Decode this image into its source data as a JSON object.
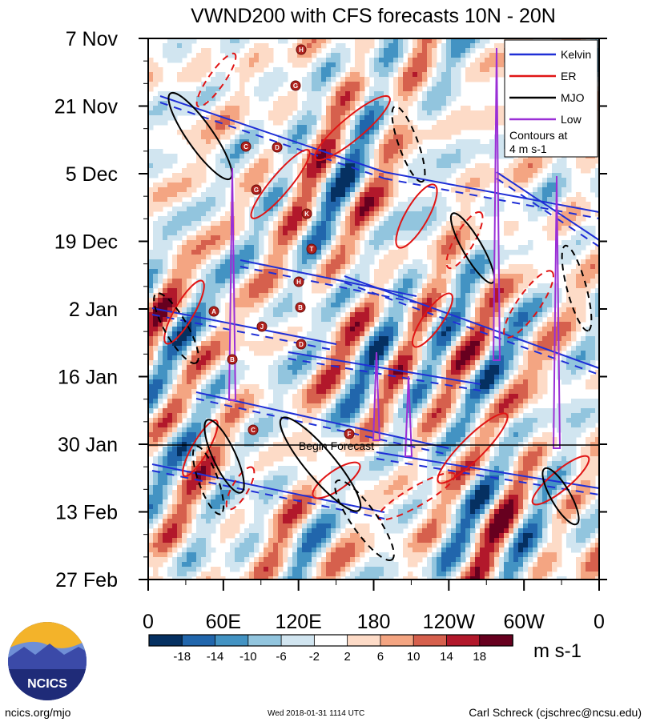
{
  "chart_data": {
    "type": "heatmap",
    "title": "VWND200 with CFS forecasts  10N - 20N",
    "x_tick_labels": [
      "0",
      "60E",
      "120E",
      "180",
      "120W",
      "60W",
      "0"
    ],
    "y_tick_labels": [
      "7 Nov",
      "21 Nov",
      "5 Dec",
      "19 Dec",
      "2 Jan",
      "16 Jan",
      "30 Jan",
      "13 Feb",
      "27 Feb"
    ],
    "colorbar": {
      "levels": [
        "-18",
        "-14",
        "-10",
        "-6",
        "-2",
        "2",
        "6",
        "10",
        "14",
        "18"
      ],
      "colors": [
        "#053061",
        "#2166ac",
        "#4393c3",
        "#92c5de",
        "#d1e5f0",
        "#ffffff",
        "#fddbc7",
        "#f4a582",
        "#d6604d",
        "#b2182b",
        "#67001f"
      ],
      "units": "m s-1"
    },
    "legend": {
      "entries": [
        {
          "name": "Kelvin",
          "color": "#1f2fd6"
        },
        {
          "name": "ER",
          "color": "#e01515"
        },
        {
          "name": "MJO",
          "color": "#000000"
        },
        {
          "name": "Low",
          "color": "#9a2fd6"
        }
      ],
      "note": "Contours at 4 m s-1"
    },
    "forecast_marker": "Begin Forecast",
    "storm_markers": [
      "H",
      "G",
      "C",
      "D",
      "G",
      "K",
      "T",
      "H",
      "B",
      "A",
      "J",
      "D",
      "B",
      "C",
      "F"
    ]
  },
  "logo": {
    "text": "NCICS"
  },
  "footer": {
    "left": "ncics.org/mjo",
    "middle": "Wed 2018-01-31 1114 UTC",
    "right": "Carl Schreck (cjschrec@ncsu.edu)"
  }
}
